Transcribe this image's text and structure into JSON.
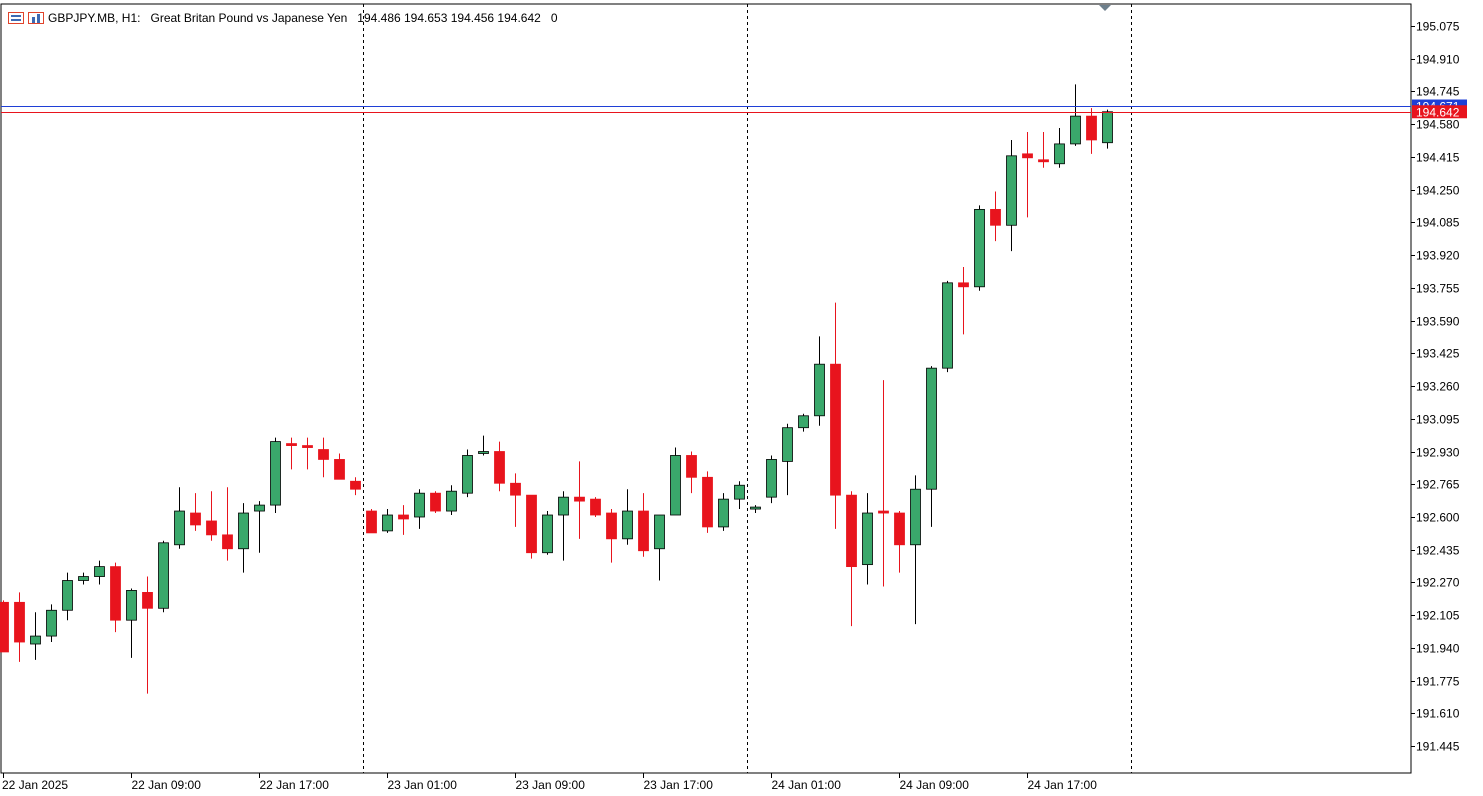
{
  "header": {
    "symbol": "GBPJPY.MB, H1:",
    "description": "Great Britan Pound vs Japanese Yen",
    "ohlc": "194.486 194.653 194.456 194.642",
    "tick": "0"
  },
  "chart_data": {
    "type": "candlestick",
    "symbol": "GBPJPY.MB",
    "timeframe": "H1",
    "ylim": [
      191.31,
      195.185
    ],
    "y_ticks": [
      195.075,
      194.91,
      194.745,
      194.58,
      194.415,
      194.25,
      194.085,
      193.92,
      193.755,
      193.59,
      193.425,
      193.26,
      193.095,
      192.93,
      192.765,
      192.6,
      192.435,
      192.27,
      192.105,
      191.94,
      191.775,
      191.61,
      191.445
    ],
    "x_labels": [
      {
        "label": "22 Jan 2025",
        "index": 0
      },
      {
        "label": "22 Jan 09:00",
        "index": 8
      },
      {
        "label": "22 Jan 17:00",
        "index": 16
      },
      {
        "label": "23 Jan 01:00",
        "index": 24
      },
      {
        "label": "23 Jan 09:00",
        "index": 32
      },
      {
        "label": "23 Jan 17:00",
        "index": 40
      },
      {
        "label": "24 Jan 01:00",
        "index": 48
      },
      {
        "label": "24 Jan 09:00",
        "index": 56
      },
      {
        "label": "24 Jan 17:00",
        "index": 64
      }
    ],
    "separators_index": [
      22.5,
      46.5,
      70.5
    ],
    "bid_line": {
      "value": 194.642,
      "label": "194.642",
      "color": "#e8141d"
    },
    "ask_line": {
      "value": 194.671,
      "label": "194.671",
      "color": "#1f3fd6"
    },
    "up_color": "#3aa86b",
    "down_color": "#e8141d",
    "candles": [
      [
        192.17,
        192.18,
        191.92,
        191.92
      ],
      [
        192.17,
        192.22,
        191.87,
        191.97
      ],
      [
        191.96,
        192.12,
        191.88,
        192.0
      ],
      [
        192.0,
        192.16,
        191.97,
        192.13
      ],
      [
        192.13,
        192.32,
        192.08,
        192.28
      ],
      [
        192.28,
        192.32,
        192.26,
        192.3
      ],
      [
        192.3,
        192.38,
        192.26,
        192.35
      ],
      [
        192.35,
        192.37,
        192.02,
        192.08
      ],
      [
        192.08,
        192.24,
        191.89,
        192.23
      ],
      [
        192.22,
        192.3,
        191.71,
        192.14
      ],
      [
        192.14,
        192.48,
        192.12,
        192.47
      ],
      [
        192.46,
        192.75,
        192.44,
        192.63
      ],
      [
        192.62,
        192.72,
        192.53,
        192.56
      ],
      [
        192.58,
        192.73,
        192.48,
        192.51
      ],
      [
        192.51,
        192.75,
        192.38,
        192.44
      ],
      [
        192.44,
        192.67,
        192.32,
        192.62
      ],
      [
        192.63,
        192.68,
        192.42,
        192.66
      ],
      [
        192.66,
        193.0,
        192.62,
        192.98
      ],
      [
        192.97,
        193.0,
        192.84,
        192.96
      ],
      [
        192.96,
        193.0,
        192.84,
        192.95
      ],
      [
        192.94,
        193.0,
        192.8,
        192.89
      ],
      [
        192.89,
        192.92,
        192.79,
        192.79
      ],
      [
        192.78,
        192.8,
        192.71,
        192.74
      ],
      [
        192.63,
        192.64,
        192.52,
        192.52
      ],
      [
        192.53,
        192.64,
        192.52,
        192.61
      ],
      [
        192.61,
        192.66,
        192.51,
        192.59
      ],
      [
        192.6,
        192.74,
        192.54,
        192.72
      ],
      [
        192.72,
        192.73,
        192.62,
        192.63
      ],
      [
        192.63,
        192.76,
        192.61,
        192.73
      ],
      [
        192.72,
        192.94,
        192.7,
        192.91
      ],
      [
        192.92,
        193.01,
        192.91,
        192.93
      ],
      [
        192.93,
        192.98,
        192.73,
        192.77
      ],
      [
        192.77,
        192.82,
        192.55,
        192.71
      ],
      [
        192.71,
        192.71,
        192.39,
        192.42
      ],
      [
        192.42,
        192.63,
        192.41,
        192.61
      ],
      [
        192.61,
        192.73,
        192.38,
        192.7
      ],
      [
        192.7,
        192.88,
        192.49,
        192.68
      ],
      [
        192.69,
        192.7,
        192.6,
        192.61
      ],
      [
        192.62,
        192.64,
        192.37,
        192.49
      ],
      [
        192.49,
        192.74,
        192.46,
        192.63
      ],
      [
        192.63,
        192.72,
        192.4,
        192.43
      ],
      [
        192.44,
        192.61,
        192.28,
        192.61
      ],
      [
        192.61,
        192.95,
        192.61,
        192.91
      ],
      [
        192.91,
        192.93,
        192.72,
        192.8
      ],
      [
        192.8,
        192.83,
        192.52,
        192.55
      ],
      [
        192.55,
        192.72,
        192.53,
        192.69
      ],
      [
        192.69,
        192.78,
        192.64,
        192.76
      ],
      [
        192.64,
        192.66,
        192.62,
        192.65
      ],
      [
        192.7,
        192.91,
        192.67,
        192.89
      ],
      [
        192.88,
        193.07,
        192.71,
        193.05
      ],
      [
        193.05,
        193.12,
        193.03,
        193.11
      ],
      [
        193.11,
        193.51,
        193.06,
        193.37
      ],
      [
        193.37,
        193.68,
        192.54,
        192.71
      ],
      [
        192.71,
        192.73,
        192.05,
        192.35
      ],
      [
        192.36,
        192.72,
        192.26,
        192.62
      ],
      [
        192.63,
        193.29,
        192.25,
        192.62
      ],
      [
        192.62,
        192.63,
        192.32,
        192.46
      ],
      [
        192.46,
        192.81,
        192.06,
        192.74
      ],
      [
        192.74,
        193.36,
        192.55,
        193.35
      ],
      [
        193.35,
        193.79,
        193.33,
        193.78
      ],
      [
        193.78,
        193.86,
        193.52,
        193.76
      ],
      [
        193.76,
        194.17,
        193.74,
        194.15
      ],
      [
        194.15,
        194.24,
        193.99,
        194.07
      ],
      [
        194.07,
        194.5,
        193.94,
        194.42
      ],
      [
        194.43,
        194.54,
        194.11,
        194.41
      ],
      [
        194.4,
        194.54,
        194.36,
        194.39
      ],
      [
        194.38,
        194.56,
        194.36,
        194.48
      ],
      [
        194.48,
        194.78,
        194.47,
        194.62
      ],
      [
        194.62,
        194.66,
        194.43,
        194.5
      ],
      [
        194.486,
        194.653,
        194.456,
        194.642
      ]
    ]
  }
}
